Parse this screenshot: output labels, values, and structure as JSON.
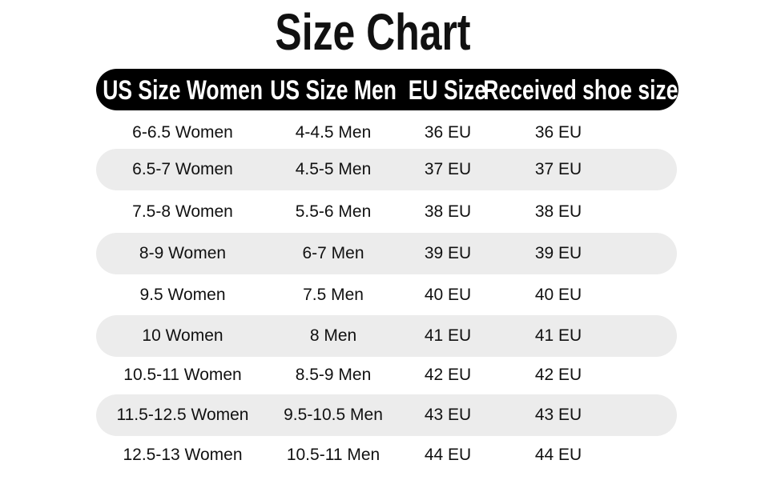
{
  "title": "Size Chart",
  "headers": [
    "US Size Women",
    "US Size Men",
    "EU Size",
    "Received shoe size"
  ],
  "colors": {
    "header_bg": "#000000",
    "header_text": "#ffffff",
    "stripe": "#ececec"
  },
  "rows": [
    [
      "6-6.5 Women",
      "4-4.5 Men",
      "36 EU",
      "36 EU"
    ],
    [
      "6.5-7 Women",
      "4.5-5 Men",
      "37 EU",
      "37 EU"
    ],
    [
      "7.5-8 Women",
      "5.5-6 Men",
      "38 EU",
      "38 EU"
    ],
    [
      "8-9 Women",
      "6-7 Men",
      "39 EU",
      "39 EU"
    ],
    [
      "9.5 Women",
      "7.5 Men",
      "40 EU",
      "40 EU"
    ],
    [
      "10 Women",
      "8 Men",
      "41 EU",
      "41 EU"
    ],
    [
      "10.5-11 Women",
      "8.5-9 Men",
      "42 EU",
      "42 EU"
    ],
    [
      "11.5-12.5 Women",
      "9.5-10.5 Men",
      "43 EU",
      "43 EU"
    ],
    [
      "12.5-13 Women",
      "10.5-11 Men",
      "44 EU",
      "44 EU"
    ]
  ]
}
